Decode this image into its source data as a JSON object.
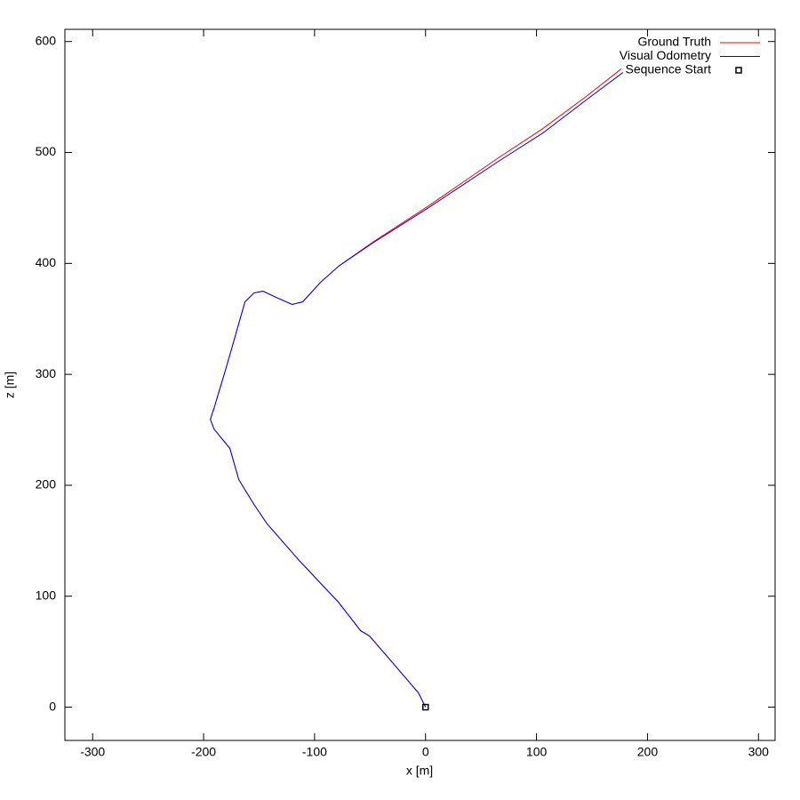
{
  "chart_data": {
    "type": "line",
    "xlabel": "x [m]",
    "ylabel": "z [m]",
    "xlim": [
      -325,
      315
    ],
    "ylim": [
      -30,
      611
    ],
    "xticks": [
      -300,
      -200,
      -100,
      0,
      100,
      200,
      300
    ],
    "yticks": [
      0,
      100,
      200,
      300,
      400,
      500,
      600
    ],
    "grid": false,
    "legend": "top-right",
    "series": [
      {
        "name": "Ground Truth",
        "color": "#ff0000",
        "style": "line",
        "x": [
          0,
          -6.4,
          -30.4,
          -50.5,
          -58.5,
          -78.5,
          -114.6,
          -142.6,
          -154.6,
          -168.3,
          -176.3,
          -190.7,
          -193.9,
          -190.7,
          -178.7,
          -162.7,
          -154.6,
          -146.6,
          -134.6,
          -120.2,
          -110.6,
          -94.6,
          -78.5,
          -46.5,
          1.6,
          65.7,
          105.8,
          145.8,
          176.3
        ],
        "values": [
          0,
          12.8,
          40.9,
          64.1,
          68.9,
          94.6,
          133,
          165,
          182.7,
          205.1,
          233.2,
          250.8,
          259.6,
          269.2,
          309.3,
          365.4,
          373.4,
          375,
          369.4,
          363,
          365.4,
          383,
          397.4,
          419.9,
          451.1,
          495.2,
          521.6,
          551.3,
          575.3
        ]
      },
      {
        "name": "Visual Odometry",
        "color": "#0000ff",
        "style": "line",
        "x": [
          0,
          -6.4,
          -30.4,
          -50.5,
          -58.5,
          -78.5,
          -114.6,
          -142.6,
          -154.6,
          -168.3,
          -176.3,
          -190.7,
          -193.9,
          -190.7,
          -178.7,
          -162.7,
          -154.6,
          -146.6,
          -134.6,
          -120.2,
          -110.6,
          -94.6,
          -78.5,
          -46.5,
          1.6,
          65.7,
          105.8,
          145.8,
          177.9
        ],
        "values": [
          0,
          12.8,
          40.9,
          64.1,
          68.9,
          94.6,
          133,
          165,
          182.7,
          205.1,
          233.2,
          250.8,
          259.6,
          269.2,
          309.3,
          365.4,
          373.4,
          375,
          369.4,
          363,
          365.4,
          383,
          397.4,
          419.1,
          449.5,
          492,
          517.6,
          548.1,
          572.1
        ]
      },
      {
        "name": "Sequence Start",
        "color": "#000000",
        "style": "square",
        "x": [
          0
        ],
        "values": [
          0
        ]
      }
    ]
  }
}
